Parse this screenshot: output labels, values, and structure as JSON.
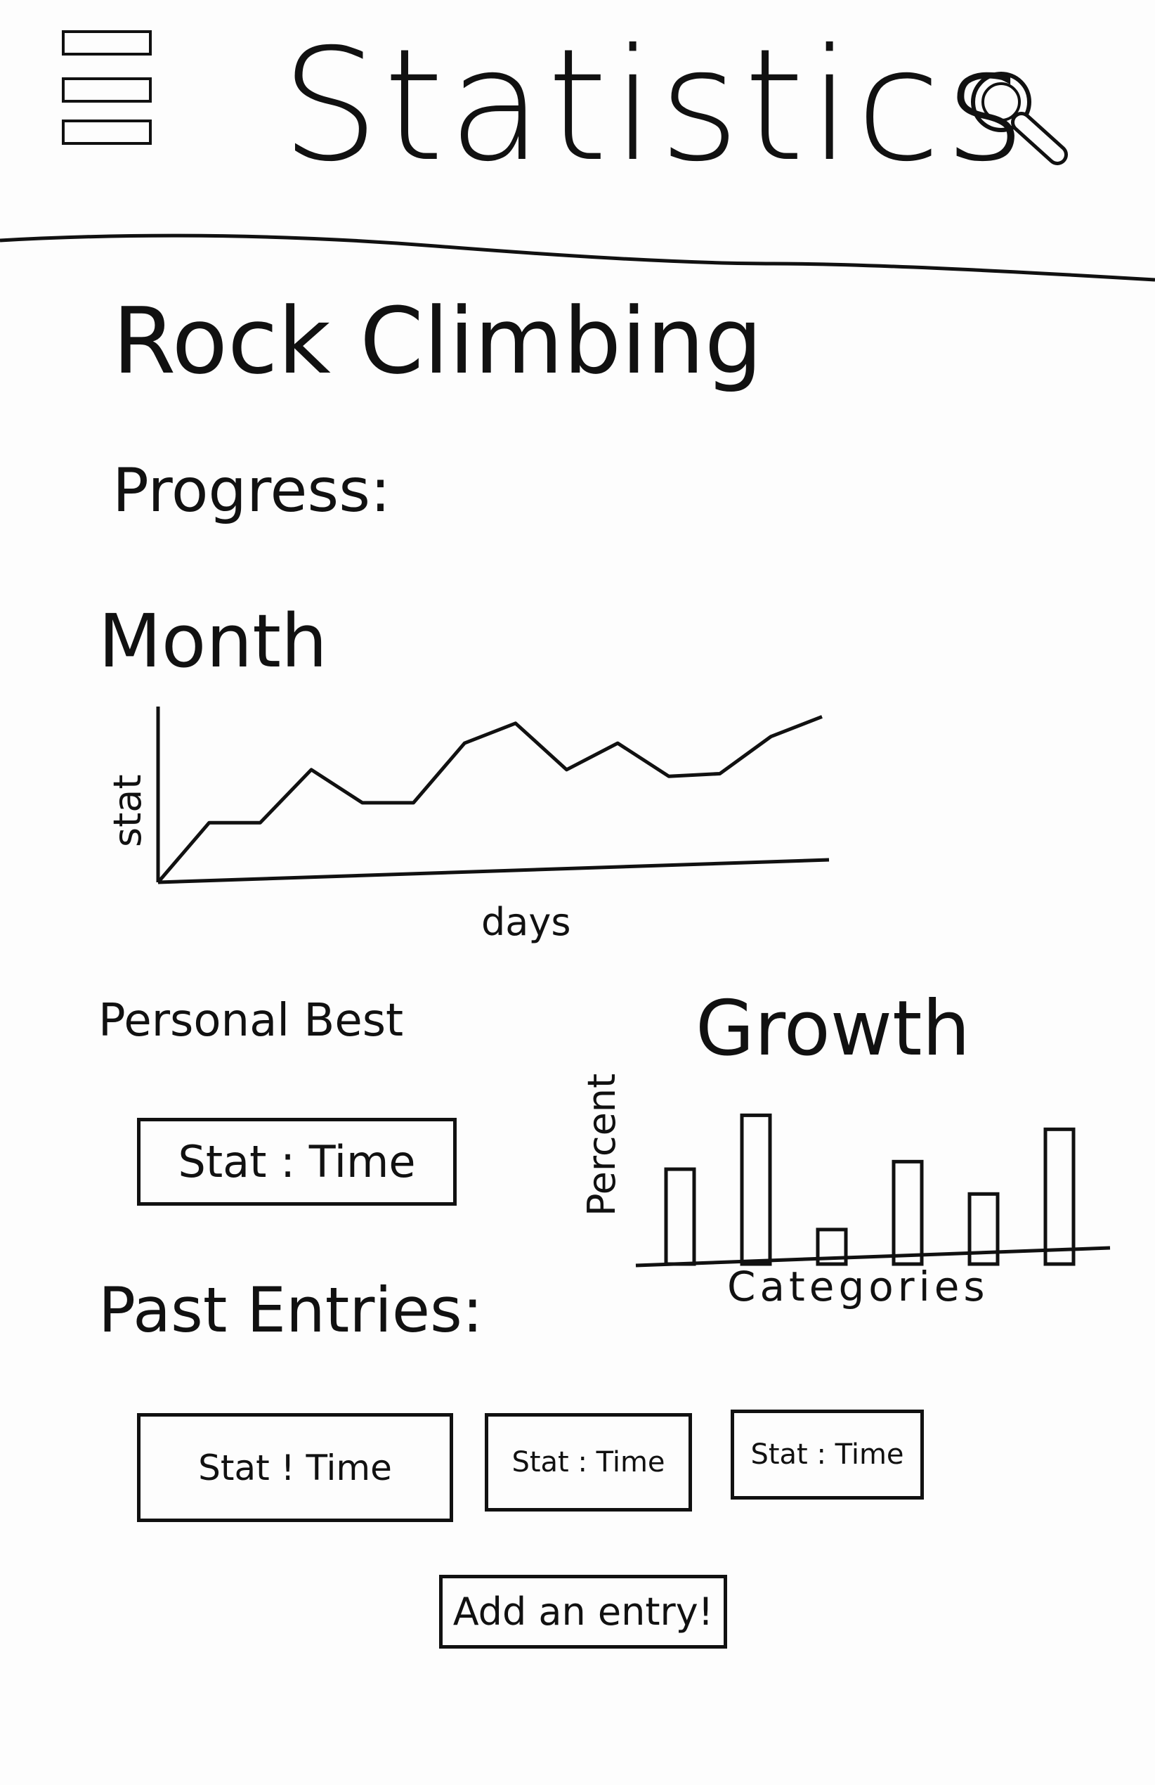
{
  "header": {
    "title": "Statistics",
    "menu_icon": "hamburger-menu-icon",
    "search_icon": "magnifier-search-icon"
  },
  "main": {
    "activity_title": "Rock Climbing",
    "progress_label": "Progress:",
    "month_label": "Month",
    "personal_best_label": "Personal Best",
    "personal_best_value": "Stat : Time",
    "growth_label": "Growth",
    "past_entries_label": "Past Entries:",
    "past_entries": [
      {
        "text": "Stat ! Time"
      },
      {
        "text": "Stat : Time"
      },
      {
        "text": "Stat : Time"
      }
    ],
    "add_entry_button": "Add an entry!"
  },
  "chart_data": [
    {
      "type": "line",
      "xlabel": "days",
      "ylabel": "stat",
      "x": [
        0,
        1,
        2,
        3,
        4,
        5,
        6,
        7,
        8,
        9,
        10,
        11,
        12,
        13
      ],
      "values": [
        0,
        45,
        45,
        85,
        60,
        60,
        105,
        120,
        85,
        105,
        80,
        82,
        110,
        125
      ]
    },
    {
      "type": "bar",
      "title": "Growth",
      "xlabel": "Categories",
      "ylabel": "Percent",
      "categories": [
        "",
        "",
        "",
        "",
        "",
        ""
      ],
      "values": [
        88,
        138,
        32,
        95,
        65,
        125
      ]
    }
  ]
}
